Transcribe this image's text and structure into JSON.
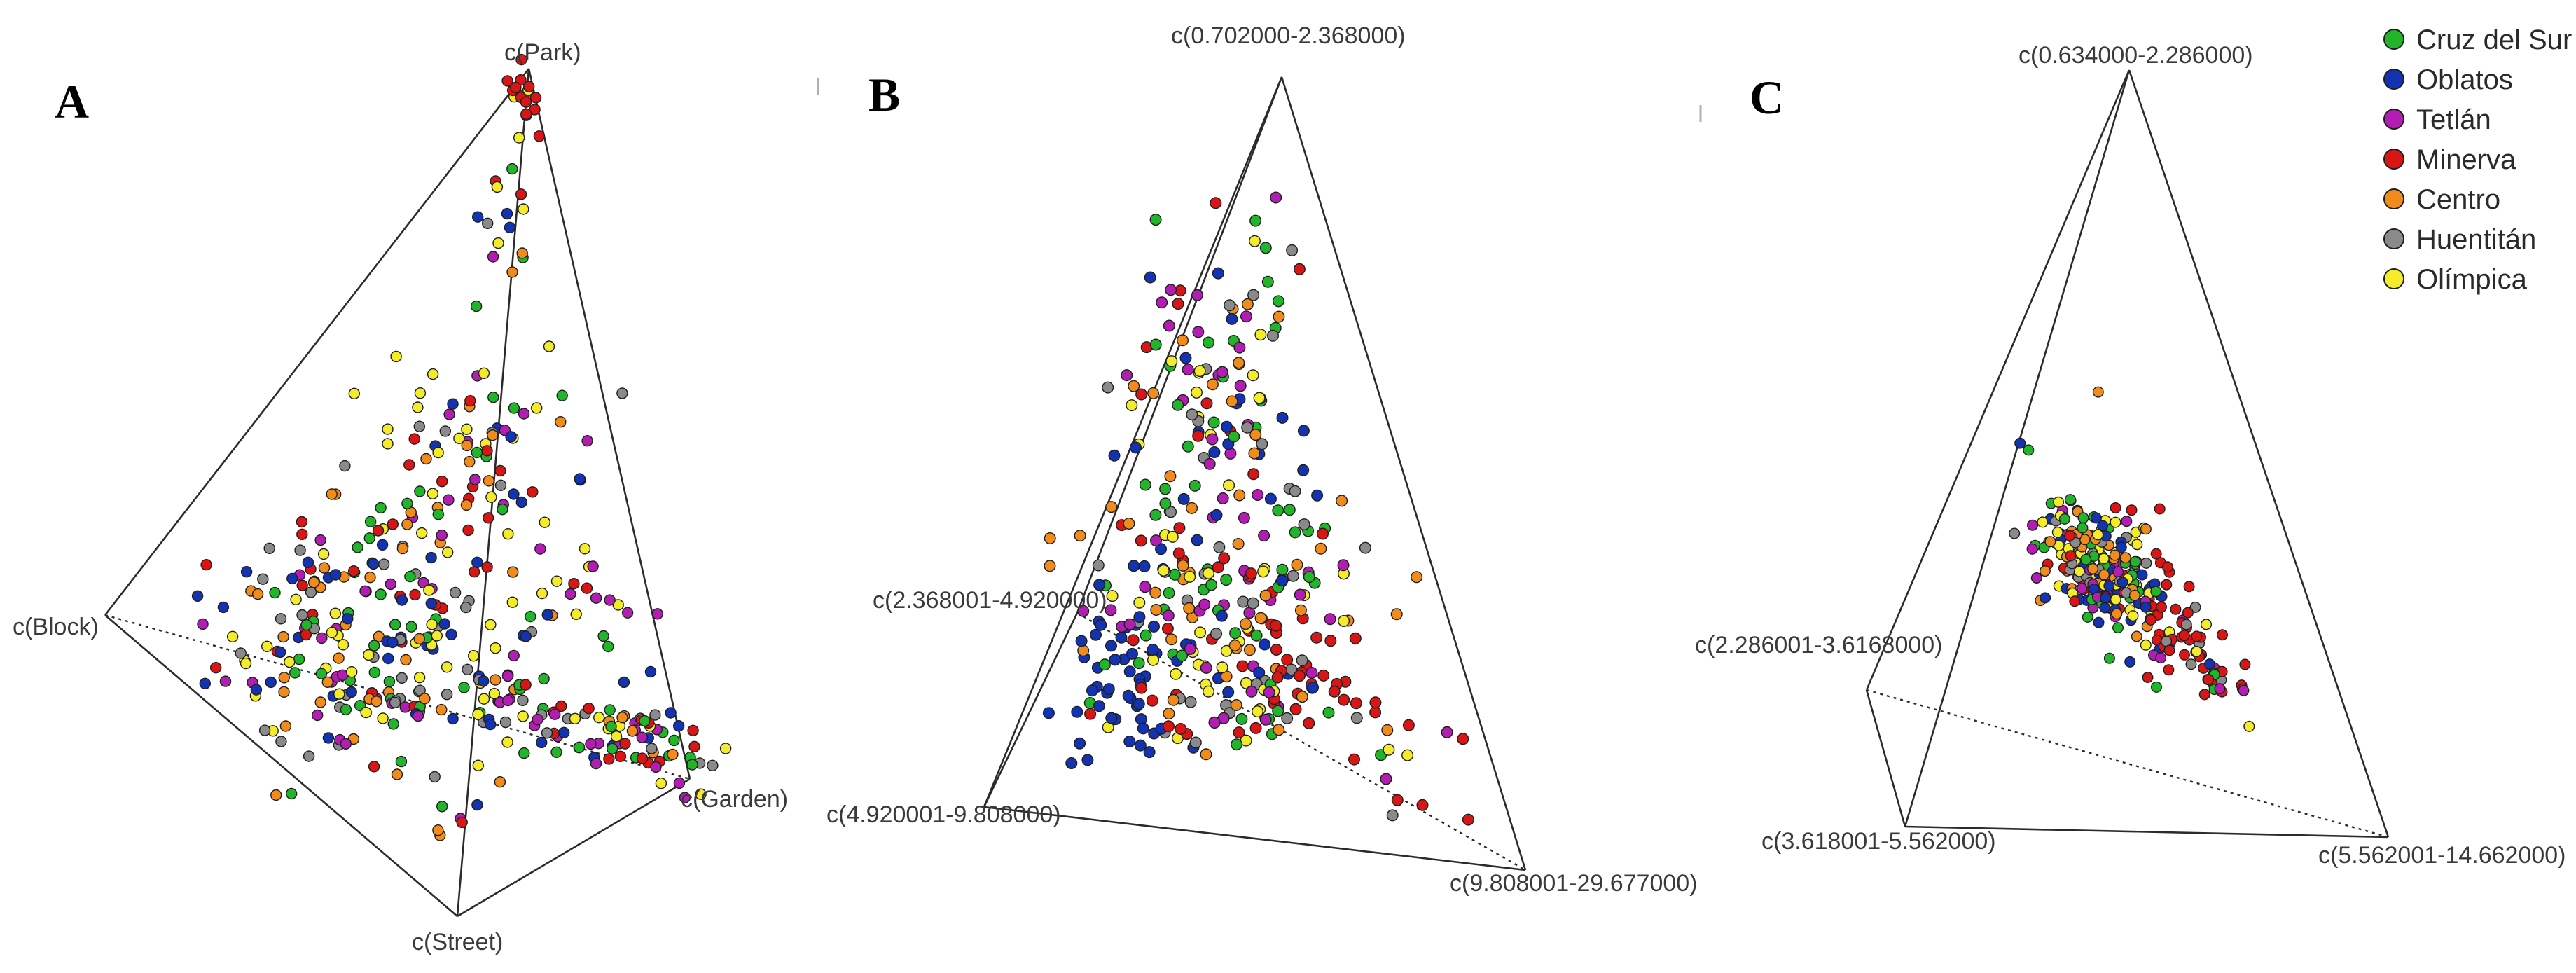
{
  "colors": {
    "Cruz del Sur": "#22b42a",
    "Oblatos": "#1433b0",
    "Tetlán": "#b21eb2",
    "Minerva": "#d91616",
    "Centro": "#f08c1c",
    "Huentitán": "#8a8a8a",
    "Olímpica": "#f4ec2a"
  },
  "legend": {
    "placement": "top-right",
    "entries": [
      "Cruz del Sur",
      "Oblatos",
      "Tetlán",
      "Minerva",
      "Centro",
      "Huentitán",
      "Olímpica"
    ]
  },
  "chart_data": [
    {
      "type": "scatter",
      "panel_label": "A",
      "vertices": [
        "c(Park)",
        "c(Block)",
        "c(Street)",
        "c(Garden)"
      ],
      "series": [
        "Cruz del Sur",
        "Oblatos",
        "Tetlán",
        "Minerva",
        "Centro",
        "Huentitán",
        "Olímpica"
      ]
    },
    {
      "type": "scatter",
      "panel_label": "B",
      "vertices": [
        "c(0.702000-2.368000)",
        "c(2.368001-4.920000)",
        "c(4.920001-9.808000)",
        "c(9.808001-29.677000)"
      ],
      "series": [
        "Cruz del Sur",
        "Oblatos",
        "Tetlán",
        "Minerva",
        "Centro",
        "Huentitán",
        "Olímpica"
      ]
    },
    {
      "type": "scatter",
      "panel_label": "C",
      "vertices": [
        "c(0.634000-2.286000)",
        "c(2.286001-3.6168000)",
        "c(3.618001-5.562000)",
        "c(5.562001-14.662000)"
      ],
      "series": [
        "Cruz del Sur",
        "Oblatos",
        "Tetlán",
        "Minerva",
        "Centro",
        "Huentitán",
        "Olímpica"
      ]
    }
  ]
}
